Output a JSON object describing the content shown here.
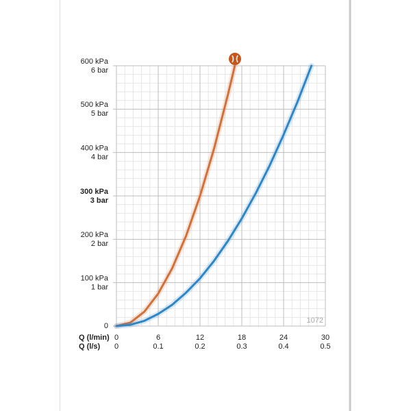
{
  "chart_data": {
    "type": "line",
    "xlabel": "Q (l/min)",
    "x2label": "Q (l/s)",
    "xlim": [
      0,
      30
    ],
    "xticks": [
      0,
      6,
      12,
      18,
      24,
      30
    ],
    "x2lim": [
      0,
      0.5
    ],
    "x2ticks": [
      0,
      0.1,
      0.2,
      0.3,
      0.4,
      0.5
    ],
    "ylim": [
      0,
      600
    ],
    "yticks": [
      0,
      {
        "value": 100,
        "label": "100 kPa"
      },
      {
        "value": 200,
        "label": "200 kPa"
      },
      {
        "value": 300,
        "label": "300 kPa"
      },
      {
        "value": 400,
        "label": "400 kPa"
      },
      {
        "value": 500,
        "label": "500 kPa"
      },
      {
        "value": 600,
        "label": "600 kPa"
      }
    ],
    "y2lim": [
      0,
      6
    ],
    "y2ticks": [
      {
        "value": 1,
        "label": "1 bar"
      },
      {
        "value": 2,
        "label": "2 bar"
      },
      {
        "value": 3,
        "label": "3 bar"
      },
      {
        "value": 4,
        "label": "4 bar"
      },
      {
        "value": 5,
        "label": "5 bar"
      },
      {
        "value": 6,
        "label": "6 bar"
      }
    ],
    "bold_ytick": 300,
    "grid": true,
    "minor_divisions": 5,
    "watermark": "1072",
    "series": [
      {
        "name": "orange",
        "color": "#d2703a",
        "x": [
          0,
          2,
          4,
          6,
          8,
          10,
          12,
          14,
          16,
          17
        ],
        "values": [
          0,
          8,
          33,
          75,
          133,
          208,
          300,
          408,
          533,
          600
        ]
      },
      {
        "name": "blue",
        "color": "#2f86c6",
        "x": [
          0,
          2,
          4,
          6,
          8,
          10,
          12,
          14,
          16,
          18,
          20,
          22,
          24,
          26,
          28
        ],
        "values": [
          0,
          3,
          12,
          28,
          49,
          77,
          110,
          150,
          196,
          248,
          306,
          370,
          441,
          517,
          600
        ]
      }
    ]
  }
}
